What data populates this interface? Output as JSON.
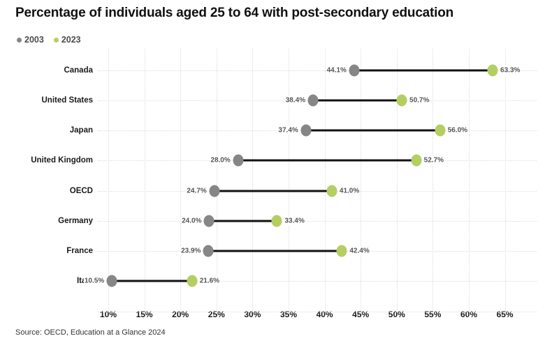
{
  "title": "Percentage of individuals aged 25 to 64 with post-secondary education",
  "source": "Source: OECD, Education at a Glance 2024",
  "legend": {
    "items": [
      {
        "label": "2003",
        "color": "#868686"
      },
      {
        "label": "2023",
        "color": "#b5ce63"
      }
    ]
  },
  "colors": {
    "dot_2003": "#868686",
    "dot_2023": "#b5ce63",
    "connector": "#111111",
    "grid": "#dcdcdc"
  },
  "chart_data": {
    "type": "dumbbell",
    "title": "Percentage of individuals aged 25 to 64 with post-secondary education",
    "xlabel": "",
    "ylabel": "",
    "x_unit": "%",
    "xlim": [
      10,
      65
    ],
    "grid": "dotted",
    "legend_position": "top-left",
    "x_ticks": [
      {
        "label": "10%",
        "value": 10
      },
      {
        "label": "15%",
        "value": 15
      },
      {
        "label": "20%",
        "value": 20
      },
      {
        "label": "25%",
        "value": 25
      },
      {
        "label": "30%",
        "value": 30
      },
      {
        "label": "35%",
        "value": 35
      },
      {
        "label": "40%",
        "value": 40
      },
      {
        "label": "45%",
        "value": 45
      },
      {
        "label": "50%",
        "value": 50
      },
      {
        "label": "55%",
        "value": 55
      },
      {
        "label": "60%",
        "value": 60
      },
      {
        "label": "65%",
        "value": 65
      }
    ],
    "categories": [
      "Canada",
      "United States",
      "Japan",
      "United Kingdom",
      "OECD",
      "Germany",
      "France",
      "Italy"
    ],
    "series": [
      {
        "name": "2003",
        "values": [
          44.1,
          38.4,
          37.4,
          28.0,
          24.7,
          24.0,
          23.9,
          10.5
        ]
      },
      {
        "name": "2023",
        "values": [
          63.3,
          50.7,
          56.0,
          52.7,
          41.0,
          33.4,
          42.4,
          21.6
        ]
      }
    ],
    "point_labels": [
      {
        "v2003": "44.1%",
        "v2023": "63.3%"
      },
      {
        "v2003": "38.4%",
        "v2023": "50.7%"
      },
      {
        "v2003": "37.4%",
        "v2023": "56.0%"
      },
      {
        "v2003": "28.0%",
        "v2023": "52.7%"
      },
      {
        "v2003": "24.7%",
        "v2023": "41.0%"
      },
      {
        "v2003": "24.0%",
        "v2023": "33.4%"
      },
      {
        "v2003": "23.9%",
        "v2023": "42.4%"
      },
      {
        "v2003": "10.5%",
        "v2023": "21.6%"
      }
    ]
  }
}
